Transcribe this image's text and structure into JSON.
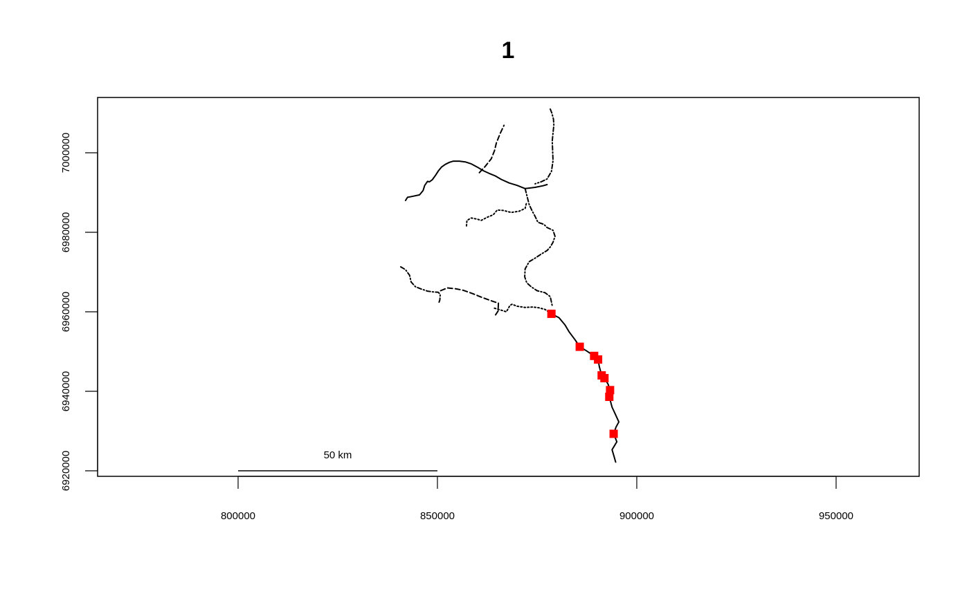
{
  "plot": {
    "title": "1",
    "x_ticks": [
      "800000",
      "850000",
      "900000",
      "950000"
    ],
    "y_ticks": [
      "6920000",
      "6940000",
      "6960000",
      "6980000",
      "7000000"
    ]
  },
  "chart_data": {
    "type": "scatter",
    "title": "1",
    "xlabel": "",
    "ylabel": "",
    "xlim": [
      765000,
      970000
    ],
    "ylim": [
      6918700,
      7014000
    ],
    "x_ticks": [
      800000,
      850000,
      900000,
      950000
    ],
    "y_ticks": [
      6920000,
      6940000,
      6960000,
      6980000,
      7000000
    ],
    "grid": false,
    "scale_bar": {
      "label": "50 km",
      "x_start": 800000,
      "x_end": 850000,
      "y": 6920000
    },
    "points": {
      "color": "#ff0000",
      "marker": "square",
      "x": [
        878600,
        885700,
        889300,
        890300,
        891200,
        891900,
        893300,
        893100,
        894200
      ],
      "y": [
        6959500,
        6951200,
        6948900,
        6948000,
        6944000,
        6943300,
        6940300,
        6938600,
        6929300
      ]
    },
    "series": [
      {
        "style": "solid",
        "x": [
          842000,
          842500,
          843500,
          845500,
          846400,
          846800,
          847500,
          848000,
          848700,
          849500,
          850200,
          851000,
          852000,
          853000,
          854000,
          855500,
          857000,
          858500,
          860000,
          861500,
          863000,
          864500,
          866000,
          868000,
          870000,
          872000,
          874500,
          876500,
          877500
        ],
        "y": [
          6988000,
          6988800,
          6989000,
          6989400,
          6990500,
          6991800,
          6992800,
          6992700,
          6993200,
          6994300,
          6995400,
          6996400,
          6997100,
          6997600,
          6997900,
          6997900,
          6997700,
          6997200,
          6996400,
          6995500,
          6994800,
          6994200,
          6993300,
          6992400,
          6991800,
          6991000,
          6991300,
          6991700,
          6992000
        ]
      },
      {
        "style": "dashed",
        "x": [
          860500,
          862000,
          863500,
          864300,
          864800,
          865800,
          866700
        ],
        "y": [
          6995000,
          6996600,
          6998500,
          7000500,
          7002500,
          7005000,
          7006900
        ]
      },
      {
        "style": "dashdot",
        "x": [
          878300,
          878700,
          879100,
          879200,
          879000,
          878800,
          879000,
          878600,
          877500,
          876000,
          874500
        ],
        "y": [
          7011000,
          7010000,
          7008500,
          7007000,
          7005000,
          7003000,
          6998000,
          6995300,
          6993400,
          6992700,
          6992200
        ]
      },
      {
        "style": "dashdot",
        "x": [
          872000,
          872500,
          873000,
          873700,
          874500,
          875200,
          876700,
          877500,
          879000,
          879500,
          879000,
          878300,
          877500,
          876000,
          874500,
          873000,
          872000,
          871900,
          872400,
          873500,
          875000,
          877000,
          878300,
          878800
        ],
        "y": [
          6991000,
          6989000,
          6987000,
          6985500,
          6984000,
          6982500,
          6982000,
          6981200,
          6980500,
          6979000,
          6977500,
          6976300,
          6975400,
          6974500,
          6973500,
          6972600,
          6970800,
          6968800,
          6967300,
          6966300,
          6965300,
          6964800,
          6963800,
          6961500
        ]
      },
      {
        "style": "dotted",
        "x": [
          857300,
          857400,
          858500,
          860000,
          861000,
          862500,
          864000,
          865000,
          866500,
          868500,
          870500,
          872000,
          872300
        ],
        "y": [
          6981600,
          6983000,
          6983600,
          6983300,
          6983000,
          6983800,
          6984400,
          6985600,
          6985500,
          6985000,
          6985300,
          6986000,
          6987200
        ]
      },
      {
        "style": "dashdot",
        "x": [
          840800,
          842000,
          843000,
          843400,
          844500,
          846000,
          847500,
          849000,
          850200,
          850700,
          850600,
          850400
        ],
        "y": [
          6971300,
          6970600,
          6969200,
          6967500,
          6966300,
          6965700,
          6965200,
          6965000,
          6964900,
          6964400,
          6963000,
          6962400
        ]
      },
      {
        "style": "dashed",
        "x": [
          850800,
          852500,
          854500,
          856500,
          859000,
          861500,
          864000,
          865300,
          865200,
          864300
        ],
        "y": [
          6965300,
          6966000,
          6965800,
          6965400,
          6964500,
          6963500,
          6962600,
          6962200,
          6960200,
          6958800
        ]
      },
      {
        "style": "dotted",
        "x": [
          864300,
          866000,
          867300,
          868200,
          868700,
          870000,
          872000,
          874000,
          875500,
          877000,
          878600
        ],
        "y": [
          6960900,
          6960400,
          6960000,
          6961600,
          6961900,
          6961400,
          6961100,
          6961200,
          6961000,
          6960600,
          6959500
        ]
      },
      {
        "style": "solid",
        "x": [
          878600,
          880500,
          882000,
          883000,
          884500,
          885700,
          887200,
          889300,
          890300,
          890600,
          891200,
          891900,
          892800,
          893300,
          893100,
          893800,
          894500,
          895500,
          894800,
          894200,
          895000,
          893800,
          894300,
          894700
        ],
        "y": [
          6959500,
          6958500,
          6956700,
          6955000,
          6953000,
          6951200,
          6950300,
          6948900,
          6948000,
          6946200,
          6944000,
          6943300,
          6941800,
          6940300,
          6938600,
          6936000,
          6934500,
          6932300,
          6931000,
          6929300,
          6927300,
          6925300,
          6923600,
          6922200
        ]
      }
    ]
  }
}
